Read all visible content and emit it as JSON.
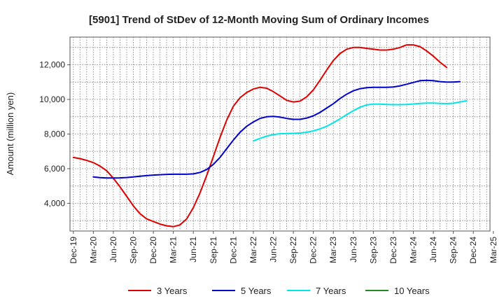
{
  "chart_data": {
    "type": "line",
    "title": "[5901]  Trend of StDev of 12-Month Moving Sum of Ordinary Incomes",
    "xlabel": "",
    "ylabel": "Amount (million yen)",
    "ylim": [
      2400,
      13600
    ],
    "yticks": [
      4000,
      6000,
      8000,
      10000,
      12000
    ],
    "ytick_labels": [
      "4,000",
      "6,000",
      "8,000",
      "10,000",
      "12,000"
    ],
    "x_start": "Dec-19",
    "x_months": 63,
    "xtick_labels": [
      "Dec-19",
      "Mar-20",
      "Jun-20",
      "Sep-20",
      "Dec-20",
      "Mar-21",
      "Jun-21",
      "Sep-21",
      "Dec-21",
      "Mar-22",
      "Jun-22",
      "Sep-22",
      "Dec-22",
      "Mar-23",
      "Jun-23",
      "Sep-23",
      "Dec-23",
      "Mar-24",
      "Jun-24",
      "Sep-24",
      "Dec-24",
      "Mar-25"
    ],
    "grid": true,
    "legend_position": "bottom",
    "series": [
      {
        "name": "3 Years",
        "color": "#dd0000",
        "start_month": 0,
        "values": [
          6650,
          6580,
          6480,
          6350,
          6150,
          5880,
          5450,
          4950,
          4400,
          3850,
          3400,
          3100,
          2950,
          2800,
          2700,
          2650,
          2750,
          3100,
          3750,
          4600,
          5600,
          6700,
          7800,
          8800,
          9600,
          10100,
          10400,
          10600,
          10700,
          10650,
          10450,
          10200,
          9950,
          9850,
          9900,
          10150,
          10550,
          11100,
          11700,
          12250,
          12650,
          12900,
          13000,
          13000,
          12950,
          12900,
          12850,
          12850,
          12900,
          13000,
          13150,
          13150,
          13050,
          12800,
          12500,
          12150,
          11850
        ]
      },
      {
        "name": "5 Years",
        "color": "#0000cc",
        "start_month": 3,
        "values": [
          5520,
          5480,
          5460,
          5460,
          5470,
          5490,
          5520,
          5560,
          5600,
          5630,
          5650,
          5670,
          5680,
          5680,
          5680,
          5700,
          5780,
          5950,
          6250,
          6650,
          7150,
          7650,
          8100,
          8450,
          8700,
          8900,
          9000,
          9020,
          8980,
          8900,
          8850,
          8850,
          8920,
          9050,
          9250,
          9500,
          9750,
          10050,
          10300,
          10500,
          10620,
          10680,
          10700,
          10700,
          10700,
          10720,
          10780,
          10880,
          10980,
          11080,
          11100,
          11080,
          11030,
          11000,
          11000,
          11030
        ]
      },
      {
        "name": "7 Years",
        "color": "#00e5e5",
        "start_month": 27,
        "values": [
          7600,
          7750,
          7880,
          7970,
          8020,
          8030,
          8040,
          8060,
          8100,
          8180,
          8300,
          8450,
          8650,
          8880,
          9120,
          9350,
          9550,
          9680,
          9730,
          9730,
          9710,
          9700,
          9700,
          9710,
          9740,
          9770,
          9790,
          9790,
          9770,
          9760,
          9780,
          9850,
          9920
        ]
      },
      {
        "name": "10 Years",
        "color": "#228b22",
        "start_month": 0,
        "values": []
      }
    ]
  }
}
